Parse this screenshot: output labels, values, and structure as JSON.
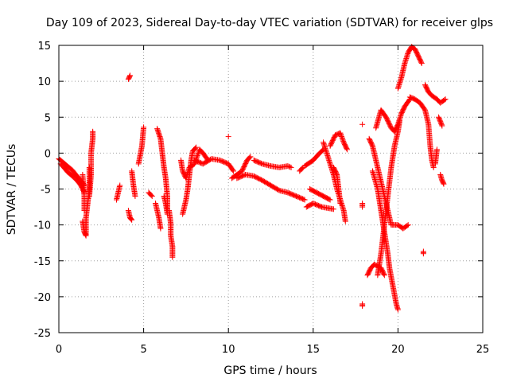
{
  "chart_data": {
    "type": "scatter",
    "title": "Day 109 of 2023, Sidereal Day-to-day VTEC variation (SDTVAR) for receiver glps",
    "xlabel": "GPS time / hours",
    "ylabel": "SDTVAR / TECUs",
    "xlim": [
      0,
      25
    ],
    "ylim": [
      -25,
      15
    ],
    "xticks": [
      "0",
      "5",
      "10",
      "15",
      "20",
      "25"
    ],
    "yticks": [
      "15",
      "10",
      "5",
      "0",
      "-5",
      "-10",
      "-15",
      "-20",
      "-25"
    ],
    "grid": true,
    "marker": "+",
    "color": "#ff0000",
    "segments": [
      [
        [
          0.0,
          -0.8
        ],
        [
          0.2,
          -1.2
        ],
        [
          0.4,
          -1.6
        ],
        [
          0.6,
          -2.0
        ],
        [
          0.8,
          -2.4
        ],
        [
          1.0,
          -3.0
        ],
        [
          1.2,
          -3.6
        ],
        [
          1.4,
          -4.1
        ],
        [
          1.5,
          -4.5
        ]
      ],
      [
        [
          0.1,
          -1.5
        ],
        [
          0.3,
          -2.0
        ],
        [
          0.5,
          -2.6
        ],
        [
          0.7,
          -3.0
        ],
        [
          0.9,
          -3.4
        ],
        [
          1.1,
          -3.9
        ],
        [
          1.3,
          -4.5
        ],
        [
          1.5,
          -5.5
        ]
      ],
      [
        [
          1.4,
          -9.5
        ],
        [
          1.5,
          -11.0
        ],
        [
          1.6,
          -11.5
        ],
        [
          1.6,
          -9.0
        ],
        [
          1.7,
          -7.0
        ],
        [
          1.8,
          -5.0
        ],
        [
          1.8,
          -2.0
        ]
      ],
      [
        [
          1.8,
          -6.0
        ],
        [
          1.9,
          -3.0
        ],
        [
          1.9,
          0.0
        ],
        [
          2.0,
          2.0
        ],
        [
          2.0,
          3.0
        ]
      ],
      [
        [
          1.4,
          -3.0
        ],
        [
          1.5,
          -6.0
        ],
        [
          1.5,
          -8.0
        ]
      ],
      [
        [
          3.4,
          -6.5
        ],
        [
          3.5,
          -5.5
        ],
        [
          3.6,
          -4.5
        ]
      ],
      [
        [
          4.1,
          10.3
        ],
        [
          4.2,
          10.8
        ]
      ],
      [
        [
          4.1,
          -8.0
        ],
        [
          4.2,
          -9.0
        ],
        [
          4.3,
          -9.3
        ]
      ],
      [
        [
          4.3,
          -2.5
        ],
        [
          4.4,
          -4.5
        ],
        [
          4.5,
          -6.0
        ]
      ],
      [
        [
          4.7,
          -1.5
        ],
        [
          4.9,
          1.0
        ],
        [
          5.0,
          3.6
        ]
      ],
      [
        [
          5.3,
          -5.5
        ],
        [
          5.5,
          -6.0
        ]
      ],
      [
        [
          5.7,
          -7.0
        ],
        [
          5.8,
          -8.0
        ],
        [
          5.9,
          -9.0
        ],
        [
          6.0,
          -10.5
        ]
      ],
      [
        [
          5.8,
          3.4
        ],
        [
          6.0,
          2.0
        ],
        [
          6.1,
          0.0
        ],
        [
          6.2,
          -2.0
        ],
        [
          6.3,
          -3.5
        ],
        [
          6.4,
          -6.0
        ],
        [
          6.4,
          -7.8
        ]
      ],
      [
        [
          6.2,
          -6.0
        ],
        [
          6.3,
          -7.0
        ],
        [
          6.4,
          -8.5
        ]
      ],
      [
        [
          6.5,
          -8.0
        ],
        [
          6.6,
          -9.8
        ],
        [
          6.6,
          -11.5
        ],
        [
          6.7,
          -13.0
        ],
        [
          6.7,
          -14.5
        ]
      ],
      [
        [
          7.3,
          -8.5
        ],
        [
          7.4,
          -7.5
        ],
        [
          7.5,
          -6.5
        ],
        [
          7.6,
          -5.0
        ],
        [
          7.7,
          -3.0
        ],
        [
          7.8,
          -1.0
        ],
        [
          7.9,
          0.3
        ],
        [
          8.1,
          0.8
        ]
      ],
      [
        [
          7.2,
          -1.0
        ],
        [
          7.3,
          -2.5
        ],
        [
          7.5,
          -3.5
        ],
        [
          7.7,
          -2.0
        ],
        [
          8.0,
          -1.5
        ],
        [
          8.3,
          0.5
        ],
        [
          8.5,
          0.0
        ],
        [
          8.8,
          -1.0
        ]
      ],
      [
        [
          8.0,
          -1.0
        ],
        [
          8.5,
          -1.5
        ],
        [
          9.0,
          -0.8
        ],
        [
          9.5,
          -1.0
        ],
        [
          10.0,
          -1.5
        ],
        [
          10.3,
          -2.5
        ]
      ],
      [
        [
          10.0,
          2.3
        ]
      ],
      [
        [
          10.2,
          -3.5
        ],
        [
          10.5,
          -3.0
        ],
        [
          10.8,
          -2.5
        ],
        [
          11.1,
          -1.0
        ],
        [
          11.3,
          -0.5
        ]
      ],
      [
        [
          10.5,
          -3.5
        ],
        [
          11.0,
          -3.0
        ],
        [
          11.5,
          -3.2
        ],
        [
          12.0,
          -3.8
        ],
        [
          12.5,
          -4.5
        ],
        [
          13.0,
          -5.2
        ],
        [
          13.5,
          -5.5
        ],
        [
          14.0,
          -6.0
        ],
        [
          14.5,
          -6.5
        ]
      ],
      [
        [
          11.5,
          -1.0
        ],
        [
          12.0,
          -1.5
        ],
        [
          12.5,
          -1.8
        ],
        [
          13.0,
          -2.0
        ],
        [
          13.5,
          -1.8
        ],
        [
          13.7,
          -2.0
        ]
      ],
      [
        [
          14.2,
          -2.5
        ],
        [
          14.4,
          -2.0
        ]
      ],
      [
        [
          14.5,
          -1.8
        ],
        [
          15.0,
          -1.0
        ],
        [
          15.3,
          -0.2
        ],
        [
          15.6,
          0.5
        ]
      ],
      [
        [
          14.8,
          -5.0
        ],
        [
          15.2,
          -5.5
        ],
        [
          15.6,
          -6.0
        ],
        [
          16.0,
          -6.5
        ]
      ],
      [
        [
          14.6,
          -7.5
        ],
        [
          15.0,
          -7.0
        ],
        [
          15.5,
          -7.5
        ],
        [
          16.2,
          -7.8
        ]
      ],
      [
        [
          15.6,
          1.5
        ],
        [
          15.8,
          0.0
        ],
        [
          16.0,
          -1.5
        ],
        [
          16.2,
          -3.0
        ],
        [
          16.4,
          -5.0
        ],
        [
          16.6,
          -6.5
        ],
        [
          16.8,
          -8.0
        ],
        [
          16.9,
          -9.5
        ]
      ],
      [
        [
          16.0,
          1.0
        ],
        [
          16.3,
          2.5
        ],
        [
          16.6,
          2.8
        ],
        [
          16.8,
          1.5
        ],
        [
          17.0,
          0.5
        ]
      ],
      [
        [
          16.2,
          -2.0
        ],
        [
          16.4,
          -3.0
        ],
        [
          16.5,
          -5.0
        ],
        [
          16.6,
          -7.0
        ]
      ],
      [
        [
          17.9,
          4.0
        ]
      ],
      [
        [
          17.9,
          -7.0
        ],
        [
          17.9,
          -7.5
        ]
      ],
      [
        [
          17.9,
          -21.0
        ],
        [
          17.9,
          -21.3
        ]
      ],
      [
        [
          18.2,
          -17.0
        ],
        [
          18.4,
          -16.0
        ],
        [
          18.6,
          -15.5
        ],
        [
          19.0,
          -16.0
        ],
        [
          19.2,
          -17.0
        ]
      ],
      [
        [
          18.3,
          2.0
        ],
        [
          18.5,
          1.0
        ],
        [
          18.8,
          -2.0
        ],
        [
          19.0,
          -4.0
        ],
        [
          19.2,
          -6.0
        ],
        [
          19.4,
          -8.0
        ],
        [
          19.6,
          -10.0
        ],
        [
          20.0,
          -10.0
        ],
        [
          20.3,
          -10.5
        ],
        [
          20.6,
          -10.0
        ]
      ],
      [
        [
          18.5,
          -2.5
        ],
        [
          18.8,
          -5.0
        ],
        [
          19.0,
          -8.0
        ],
        [
          19.2,
          -11.0
        ],
        [
          19.4,
          -14.0
        ],
        [
          19.5,
          -16.0
        ],
        [
          19.7,
          -18.5
        ],
        [
          19.9,
          -21.0
        ],
        [
          20.0,
          -21.8
        ]
      ],
      [
        [
          18.8,
          -17.0
        ],
        [
          19.0,
          -14.0
        ],
        [
          19.2,
          -10.0
        ],
        [
          19.4,
          -6.0
        ],
        [
          19.6,
          -2.0
        ],
        [
          19.8,
          1.0
        ],
        [
          20.0,
          3.0
        ],
        [
          20.1,
          4.5
        ]
      ],
      [
        [
          18.7,
          3.5
        ],
        [
          19.0,
          6.0
        ],
        [
          19.3,
          5.0
        ],
        [
          19.6,
          3.5
        ],
        [
          19.8,
          3.0
        ],
        [
          20.0,
          4.0
        ],
        [
          20.2,
          5.5
        ],
        [
          20.4,
          6.5
        ],
        [
          20.7,
          7.5
        ]
      ],
      [
        [
          20.0,
          9.0
        ],
        [
          20.2,
          10.5
        ],
        [
          20.4,
          12.5
        ],
        [
          20.6,
          14.0
        ],
        [
          20.8,
          14.8
        ],
        [
          21.0,
          14.5
        ],
        [
          21.2,
          13.5
        ],
        [
          21.4,
          12.5
        ]
      ],
      [
        [
          20.7,
          7.8
        ],
        [
          21.0,
          7.5
        ],
        [
          21.3,
          7.0
        ],
        [
          21.6,
          6.0
        ],
        [
          21.8,
          4.0
        ],
        [
          21.9,
          1.0
        ],
        [
          22.0,
          -1.0
        ],
        [
          22.1,
          -2.0
        ]
      ],
      [
        [
          21.5,
          -13.7
        ],
        [
          21.5,
          -14.0
        ]
      ],
      [
        [
          22.2,
          -1.5
        ],
        [
          22.3,
          0.5
        ]
      ],
      [
        [
          21.6,
          9.5
        ],
        [
          21.8,
          8.5
        ],
        [
          22.0,
          8.0
        ],
        [
          22.3,
          7.5
        ],
        [
          22.5,
          7.0
        ],
        [
          22.8,
          7.5
        ]
      ],
      [
        [
          22.4,
          5.0
        ],
        [
          22.6,
          3.8
        ]
      ],
      [
        [
          22.5,
          -3.0
        ],
        [
          22.6,
          -3.8
        ],
        [
          22.7,
          -4.3
        ]
      ]
    ]
  }
}
